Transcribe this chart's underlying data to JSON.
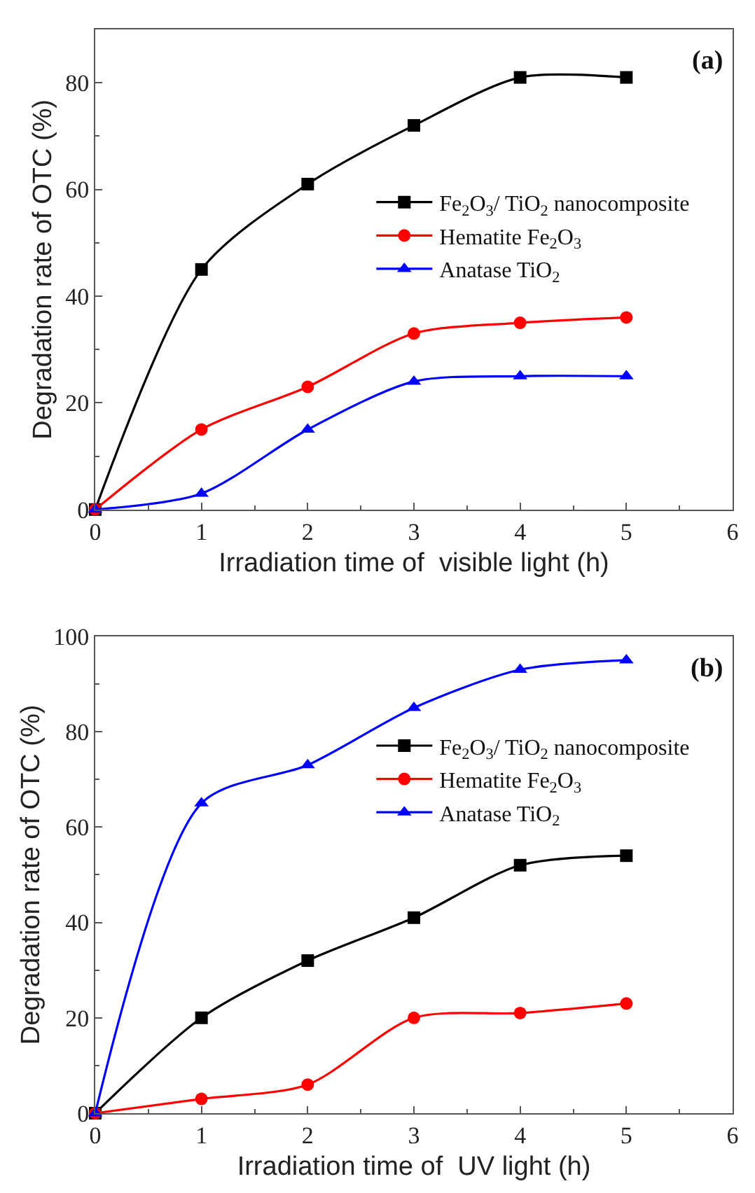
{
  "chart_data": [
    {
      "type": "line",
      "xlabel": "Irradiation time of  visible light (h)",
      "ylabel": "Degradation rate of OTC (%)",
      "annotations": [
        "(a)"
      ],
      "x": [
        0,
        1,
        2,
        3,
        4,
        5
      ],
      "xlim": [
        0,
        6
      ],
      "xticks": [
        0,
        1,
        2,
        3,
        4,
        5,
        6
      ],
      "ylim": [
        0,
        90
      ],
      "yticks": [
        0,
        20,
        40,
        60,
        80
      ],
      "legend": "center right",
      "line_style": "solid",
      "series": [
        {
          "name": "Fe$_{2}$O$_{3}$/ TiO$_{2}$ nanocomposite",
          "color": "#000000",
          "marker": "square",
          "values": [
            0,
            45,
            61,
            72,
            81,
            81
          ]
        },
        {
          "name": "Hematite Fe$_{2}$O$_{3}$",
          "color": "#ff0000",
          "marker": "circle",
          "values": [
            0,
            15,
            23,
            33,
            35,
            36
          ]
        },
        {
          "name": "Anatase TiO$_{2}$",
          "color": "#0000ff",
          "marker": "triangle",
          "values": [
            0,
            3,
            15,
            24,
            25,
            25
          ]
        }
      ]
    },
    {
      "type": "line",
      "xlabel": "Irradiation time of  UV light (h)",
      "ylabel": "Degradation rate of OTC (%)",
      "annotations": [
        "(b)"
      ],
      "x": [
        0,
        1,
        2,
        3,
        4,
        5
      ],
      "xlim": [
        0,
        6
      ],
      "xticks": [
        0,
        1,
        2,
        3,
        4,
        5,
        6
      ],
      "ylim": [
        0,
        100
      ],
      "yticks": [
        0,
        20,
        40,
        60,
        80,
        100
      ],
      "legend": "center right",
      "line_style": "solid",
      "series": [
        {
          "name": "Fe$_{2}$O$_{3}$/ TiO$_{2}$ nanocomposite",
          "color": "#000000",
          "marker": "square",
          "values": [
            0,
            20,
            32,
            41,
            52,
            54
          ]
        },
        {
          "name": "Hematite Fe$_{2}$O$_{3}$",
          "color": "#ff0000",
          "marker": "circle",
          "values": [
            0,
            3,
            6,
            20,
            21,
            23
          ]
        },
        {
          "name": "Anatase TiO$_{2}$",
          "color": "#0000ff",
          "marker": "triangle",
          "values": [
            0,
            65,
            73,
            85,
            93,
            95
          ]
        }
      ]
    }
  ]
}
